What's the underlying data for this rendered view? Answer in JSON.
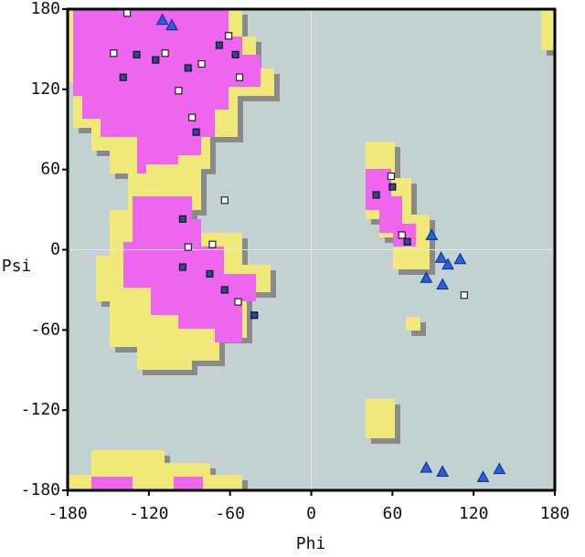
{
  "chart_data": {
    "type": "scatter",
    "x_label": "Phi",
    "y_label": "Psi",
    "xlim": [
      -180,
      180
    ],
    "ylim": [
      -180,
      180
    ],
    "xticks": [
      -180,
      -120,
      -60,
      0,
      60,
      120,
      180
    ],
    "yticks": [
      -180,
      -120,
      -60,
      0,
      60,
      120,
      180
    ],
    "series": [
      {
        "marker": "square",
        "color": "#ffffff",
        "x": [
          -136,
          -64,
          113,
          -146,
          -98,
          -88,
          -91,
          -73,
          -54,
          59,
          67,
          -108,
          -81,
          -61,
          -53
        ],
        "y": [
          177,
          37,
          -34,
          147,
          119,
          99,
          2,
          4,
          -39,
          55,
          11,
          147,
          139,
          160,
          129
        ]
      },
      {
        "marker": "square",
        "color": "#304890",
        "x": [
          -139,
          -129,
          -115,
          -91,
          -68,
          -56,
          -85,
          -95,
          -95,
          -75,
          -64,
          -42,
          60,
          48,
          71
        ],
        "y": [
          129,
          146,
          142,
          136,
          153,
          146,
          88,
          23,
          -13,
          -18,
          -30,
          -49,
          47,
          41,
          6
        ]
      },
      {
        "marker": "triangle",
        "color": "#2a5ee0",
        "x": [
          -110,
          -103,
          85,
          97,
          127,
          139,
          89,
          96,
          101,
          110,
          85,
          97
        ],
        "y": [
          172,
          168,
          -163,
          -166,
          -170,
          -164,
          11,
          -6,
          -11,
          -7,
          -21,
          -26
        ]
      }
    ]
  }
}
